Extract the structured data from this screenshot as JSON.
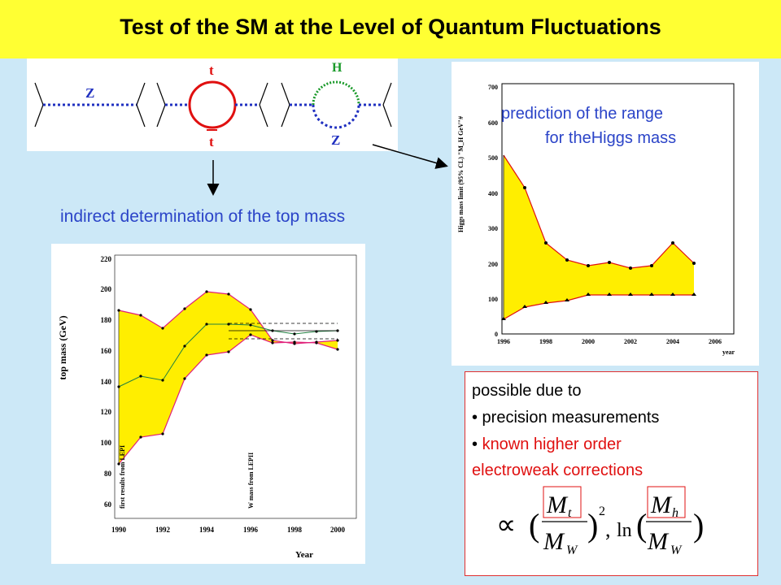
{
  "title": "Test of the SM at the Level of Quantum Fluctuations",
  "feynman": {
    "label_z1": "Z",
    "label_t_top": "t",
    "label_t_bottom": "t",
    "label_h": "H",
    "label_z2": "Z"
  },
  "labels": {
    "indirect": "indirect determination of the top mass",
    "prediction_line1": "prediction of the range",
    "prediction_line2": "for theHiggs mass"
  },
  "higgs_plot": {
    "ylabel": "Higgs mass limit (95% CL) \"M_H GeV\"#",
    "xlabel": "year",
    "yticks": [
      "0",
      "100",
      "200",
      "300",
      "400",
      "500",
      "600",
      "700"
    ],
    "xticks": [
      "1996",
      "1998",
      "2000",
      "2002",
      "2004",
      "2006"
    ]
  },
  "top_plot": {
    "ylabel": "top mass (GeV)",
    "xlabel": "Year",
    "yticks": [
      "60",
      "80",
      "100",
      "120",
      "140",
      "160",
      "180",
      "200",
      "220"
    ],
    "xticks": [
      "1990",
      "1992",
      "1994",
      "1996",
      "1998",
      "2000"
    ],
    "annot1": "first results from LEPI",
    "annot2": "W mass from LEPII"
  },
  "box": {
    "line1": "possible due to",
    "line2": "• precision measurements",
    "line3": "• known higher order",
    "line4": "electroweak corrections"
  },
  "formula": {
    "propto": "∝",
    "mt": "M",
    "mt_sub": "t",
    "mw": "M",
    "mw_sub": "W",
    "sq": "2",
    "ln": "ln",
    "mh": "M",
    "mh_sub": "h"
  },
  "colors": {
    "title_bg": "#ffff33",
    "page_bg": "#cce8f7",
    "label_blue": "#2b44c8",
    "band_fill": "#ffee00",
    "top_red": "#e01010",
    "higgs_green": "#1a9a2a"
  }
}
